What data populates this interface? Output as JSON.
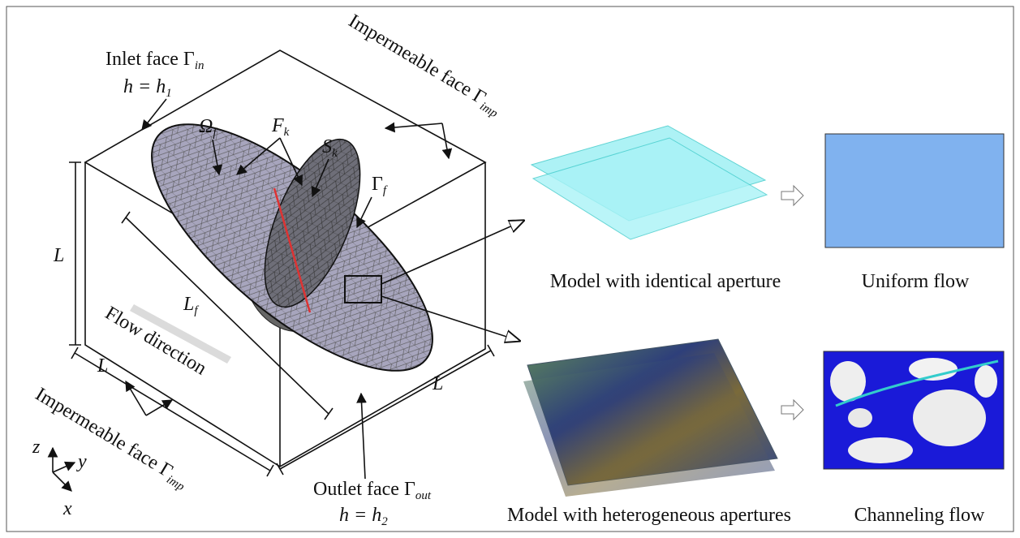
{
  "labels": {
    "inlet": {
      "text": "Inlet face Γ",
      "sub": "in"
    },
    "h1": {
      "text": "h = h",
      "sub": "1"
    },
    "imp_top": {
      "text": "Impermeable face Γ",
      "sub": "imp"
    },
    "omega": {
      "text": "Ω",
      "sub": "f"
    },
    "fk": {
      "text": "F",
      "sub": "k"
    },
    "sk": {
      "text": "S",
      "sub": "k"
    },
    "gamma_f": {
      "text": "Γ",
      "sub": "f"
    },
    "L_left": "L",
    "Lf": {
      "text": "L",
      "sub": "f"
    },
    "flow": "Flow direction",
    "L_bottom": "L",
    "L_right": "L",
    "imp_bottom": {
      "text": "Impermeable face Γ",
      "sub": "imp"
    },
    "outlet": {
      "text": "Outlet face Γ",
      "sub": "out"
    },
    "h2": {
      "text": "h = h",
      "sub": "2"
    },
    "axis_z": "z",
    "axis_y": "y",
    "axis_x": "x"
  },
  "captions": {
    "identical": "Model with identical aperture",
    "uniform": "Uniform flow",
    "heterogeneous": "Model with heterogeneous apertures",
    "channeling": "Channeling flow"
  }
}
